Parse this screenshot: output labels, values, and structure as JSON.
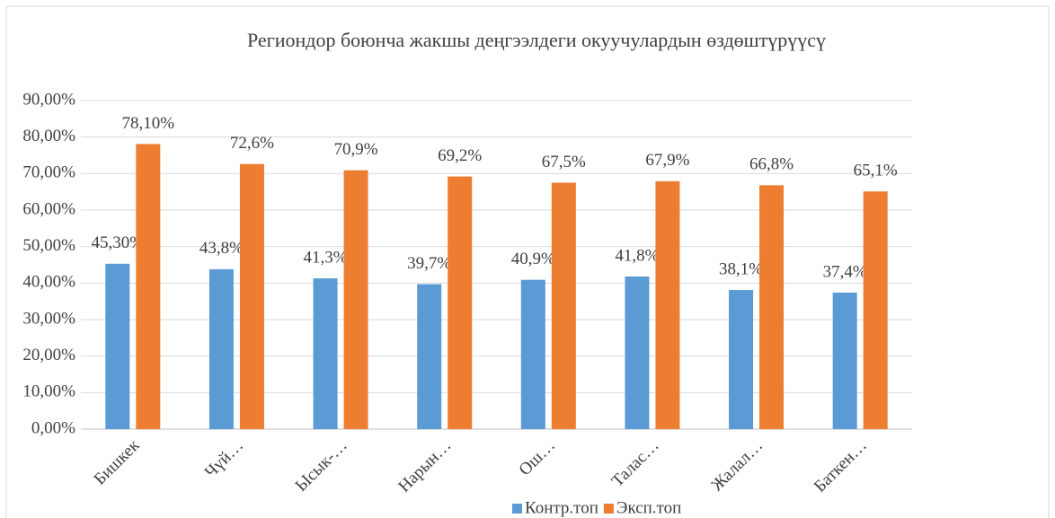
{
  "chart_data": {
    "type": "bar",
    "title": "Региондор боюнча жакшы деңгээлдеги окуучулардын өздөштүрүүсү",
    "categories": [
      "Бишкек",
      "Чүй…",
      "Ысык-…",
      "Нарын…",
      "Ош…",
      "Талас…",
      "Жалал…",
      "Баткен…"
    ],
    "series": [
      {
        "name": "Контр.топ",
        "color": "#5b9bd5",
        "values": [
          45.3,
          43.8,
          41.3,
          39.7,
          40.9,
          41.8,
          38.1,
          37.4
        ],
        "value_labels": [
          "45,30%",
          "43,8%",
          "41,3%",
          "39,7%",
          "40,9%",
          "41,8%",
          "38,1%",
          "37,4%"
        ]
      },
      {
        "name": "Эксп.топ",
        "color": "#ed7d31",
        "values": [
          78.1,
          72.6,
          70.9,
          69.2,
          67.5,
          67.9,
          66.8,
          65.1
        ],
        "value_labels": [
          "78,10%",
          "72,6%",
          "70,9%",
          "69,2%",
          "67,5%",
          "67,9%",
          "66,8%",
          "65,1%"
        ]
      }
    ],
    "ylim": [
      0,
      90
    ],
    "yticks": [
      {
        "value": 0,
        "label": "0,00%"
      },
      {
        "value": 10,
        "label": "10,00%"
      },
      {
        "value": 20,
        "label": "20,00%"
      },
      {
        "value": 30,
        "label": "30,00%"
      },
      {
        "value": 40,
        "label": "40,00%"
      },
      {
        "value": 50,
        "label": "50,00%"
      },
      {
        "value": 60,
        "label": "60,00%"
      },
      {
        "value": 70,
        "label": "70,00%"
      },
      {
        "value": 80,
        "label": "80,00%"
      },
      {
        "value": 90,
        "label": "90,00%"
      }
    ],
    "grid": true,
    "legend": "bottom"
  }
}
